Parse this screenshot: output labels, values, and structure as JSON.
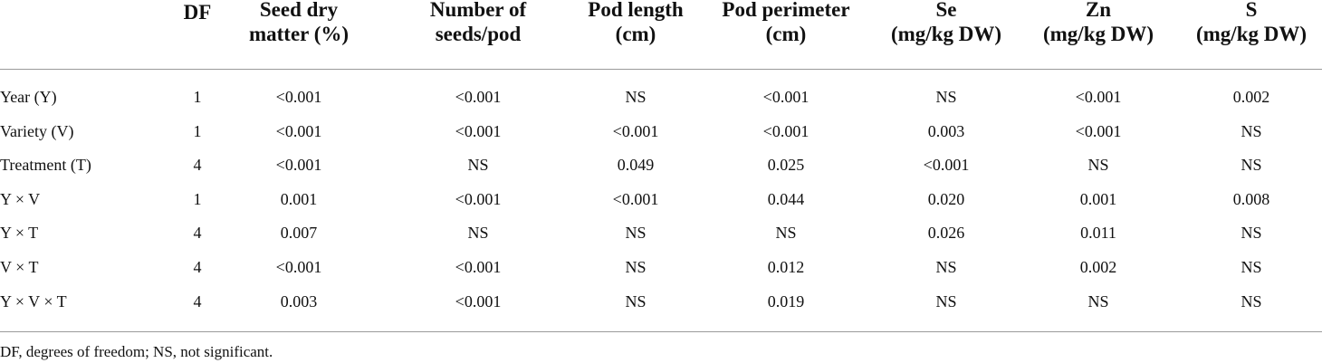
{
  "table": {
    "headers": [
      [
        "DF"
      ],
      [
        "Seed dry",
        "matter (%)"
      ],
      [
        "Number of",
        "seeds/pod"
      ],
      [
        "Pod length",
        "(cm)"
      ],
      [
        "Pod perimeter",
        "(cm)"
      ],
      [
        "Se",
        "(mg/kg DW)"
      ],
      [
        "Zn",
        "(mg/kg DW)"
      ],
      [
        "S",
        "(mg/kg DW)"
      ]
    ],
    "rows": [
      [
        "Year (Y)",
        "1",
        "<0.001",
        "<0.001",
        "NS",
        "<0.001",
        "NS",
        "<0.001",
        "0.002"
      ],
      [
        "Variety (V)",
        "1",
        "<0.001",
        "<0.001",
        "<0.001",
        "<0.001",
        "0.003",
        "<0.001",
        "NS"
      ],
      [
        "Treatment (T)",
        "4",
        "<0.001",
        "NS",
        "0.049",
        "0.025",
        "<0.001",
        "NS",
        "NS"
      ],
      [
        "Y × V",
        "1",
        "0.001",
        "<0.001",
        "<0.001",
        "0.044",
        "0.020",
        "0.001",
        "0.008"
      ],
      [
        "Y × T",
        "4",
        "0.007",
        "NS",
        "NS",
        "NS",
        "0.026",
        "0.011",
        "NS"
      ],
      [
        "V × T",
        "4",
        "<0.001",
        "<0.001",
        "NS",
        "0.012",
        "NS",
        "0.002",
        "NS"
      ],
      [
        "Y × V × T",
        "4",
        "0.003",
        "<0.001",
        "NS",
        "0.019",
        "NS",
        "NS",
        "NS"
      ]
    ]
  },
  "footnote": "DF, degrees of freedom; NS, not significant."
}
